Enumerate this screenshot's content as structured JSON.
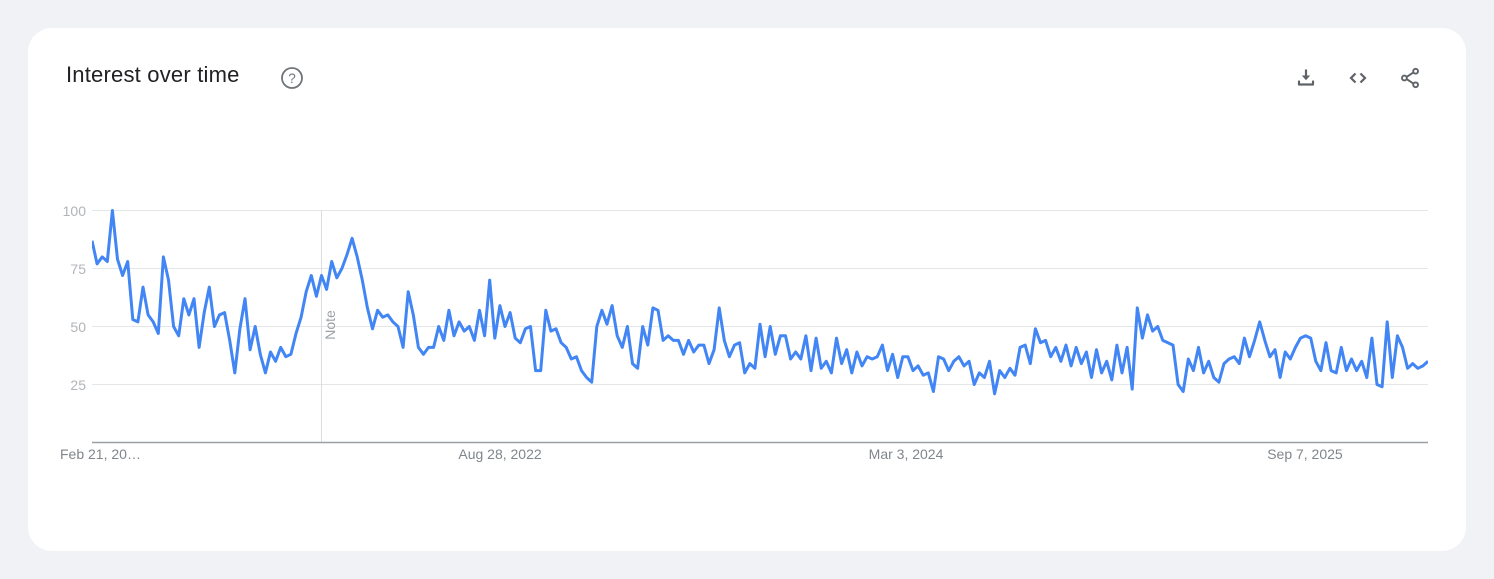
{
  "page": {
    "background_color": "#f0f2f6",
    "card_color": "#ffffff"
  },
  "header": {
    "title": "Interest over time",
    "help_icon": "question-mark-circle-icon",
    "actions": [
      {
        "id": "download",
        "icon": "download-icon"
      },
      {
        "id": "embed",
        "icon": "code-brackets-icon"
      },
      {
        "id": "share",
        "icon": "share-icon"
      }
    ]
  },
  "chart_data": {
    "type": "line",
    "title": "Interest over time",
    "xlabel": "",
    "ylabel": "",
    "ylim": [
      0,
      100
    ],
    "grid": "horizontal",
    "line_color": "#4285f4",
    "grid_color": "#e4e7ea",
    "axis_color": "#9aa0a6",
    "y_axis": {
      "ticks": [
        100,
        75,
        50,
        25
      ]
    },
    "x_axis": {
      "tick_labels": [
        "Feb 21, 20…",
        "Aug 28, 2022",
        "Mar 3, 2024",
        "Sep 7, 2025"
      ],
      "tick_positions": [
        0.0,
        0.3054,
        0.6093,
        0.9079
      ]
    },
    "annotation": {
      "label": "Note",
      "position_index": 45,
      "line_color": "#dadce0"
    },
    "series": [
      {
        "name": "interest",
        "color": "#4285f4",
        "values": [
          87,
          77,
          80,
          78,
          100,
          79,
          72,
          78,
          53,
          52,
          67,
          55,
          52,
          47,
          80,
          70,
          50,
          46,
          62,
          55,
          62,
          41,
          56,
          67,
          50,
          55,
          56,
          44,
          30,
          49,
          62,
          40,
          50,
          38,
          30,
          39,
          35,
          41,
          37,
          38,
          47,
          54,
          65,
          72,
          63,
          72,
          66,
          78,
          71,
          75,
          81,
          88,
          80,
          70,
          58,
          49,
          57,
          54,
          55,
          52,
          50,
          41,
          65,
          55,
          41,
          38,
          41,
          41,
          50,
          44,
          57,
          46,
          52,
          48,
          50,
          44,
          57,
          46,
          70,
          45,
          59,
          50,
          56,
          45,
          43,
          49,
          50,
          31,
          31,
          57,
          48,
          49,
          43,
          41,
          36,
          37,
          31,
          28,
          26,
          50,
          57,
          51,
          59,
          46,
          41,
          50,
          34,
          32,
          50,
          42,
          58,
          57,
          44,
          46,
          44,
          44,
          38,
          44,
          39,
          42,
          42,
          34,
          40,
          58,
          44,
          37,
          42,
          43,
          30,
          34,
          32,
          51,
          37,
          50,
          38,
          46,
          46,
          36,
          39,
          36,
          46,
          31,
          45,
          32,
          35,
          30,
          45,
          34,
          40,
          30,
          39,
          33,
          37,
          36,
          37,
          42,
          31,
          38,
          28,
          37,
          37,
          31,
          33,
          29,
          30,
          22,
          37,
          36,
          31,
          35,
          37,
          33,
          35,
          25,
          30,
          28,
          35,
          21,
          31,
          28,
          32,
          29,
          41,
          42,
          34,
          49,
          43,
          44,
          37,
          41,
          35,
          42,
          33,
          41,
          34,
          39,
          28,
          40,
          30,
          35,
          27,
          42,
          30,
          41,
          23,
          58,
          45,
          55,
          48,
          50,
          44,
          43,
          42,
          25,
          22,
          36,
          31,
          41,
          30,
          35,
          28,
          26,
          34,
          36,
          37,
          34,
          45,
          37,
          44,
          52,
          44,
          37,
          40,
          28,
          39,
          36,
          41,
          45,
          46,
          45,
          35,
          31,
          43,
          31,
          30,
          41,
          31,
          36,
          31,
          35,
          28,
          45,
          25,
          24,
          52,
          28,
          46,
          41,
          32,
          34,
          32,
          33,
          35
        ]
      }
    ]
  }
}
